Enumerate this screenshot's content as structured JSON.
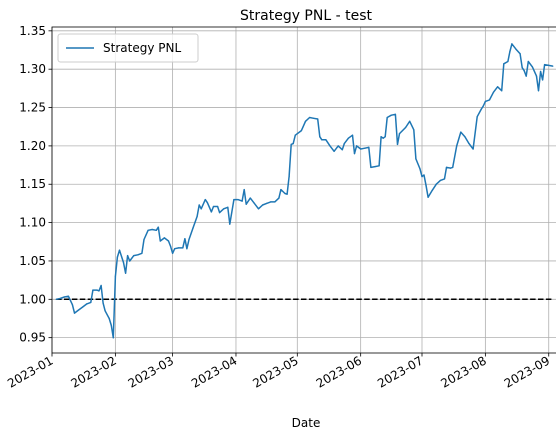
{
  "chart_data": {
    "type": "line",
    "title": "Strategy PNL - test",
    "xlabel": "Date",
    "ylabel": "",
    "x_type": "date",
    "xlim": [
      "2023-01-01",
      "2023-09-07"
    ],
    "ylim": [
      0.93,
      1.355
    ],
    "grid": true,
    "legend": {
      "entries": [
        "Strategy PNL"
      ],
      "placement": "top-left"
    },
    "x_tick_labels": [
      "2023-01",
      "2023-02",
      "2023-03",
      "2023-04",
      "2023-05",
      "2023-06",
      "2023-07",
      "2023-08",
      "2023-09"
    ],
    "x_tick_values": [
      "2023-01-01",
      "2023-02-01",
      "2023-03-01",
      "2023-04-01",
      "2023-05-01",
      "2023-06-01",
      "2023-07-01",
      "2023-08-01",
      "2023-09-01"
    ],
    "y_tick_labels": [
      "0.95",
      "1.00",
      "1.05",
      "1.10",
      "1.15",
      "1.20",
      "1.25",
      "1.30",
      "1.35"
    ],
    "y_tick_values": [
      0.95,
      1.0,
      1.05,
      1.1,
      1.15,
      1.2,
      1.25,
      1.3,
      1.35
    ],
    "colors": {
      "series": "#1f77b4",
      "baseline": "#000000",
      "grid": "#b0b0b0"
    },
    "series": [
      {
        "name": "Strategy PNL",
        "points": [
          [
            "2023-01-03",
            1.0
          ],
          [
            "2023-01-05",
            1.001
          ],
          [
            "2023-01-07",
            1.003
          ],
          [
            "2023-01-09",
            1.004
          ],
          [
            "2023-01-11",
            0.993
          ],
          [
            "2023-01-12",
            0.982
          ],
          [
            "2023-01-14",
            0.986
          ],
          [
            "2023-01-16",
            0.99
          ],
          [
            "2023-01-18",
            0.994
          ],
          [
            "2023-01-20",
            0.996
          ],
          [
            "2023-01-21",
            1.012
          ],
          [
            "2023-01-23",
            1.012
          ],
          [
            "2023-01-24",
            1.011
          ],
          [
            "2023-01-25",
            1.018
          ],
          [
            "2023-01-26",
            0.995
          ],
          [
            "2023-01-27",
            0.985
          ],
          [
            "2023-01-29",
            0.975
          ],
          [
            "2023-01-30",
            0.966
          ],
          [
            "2023-01-31",
            0.95
          ],
          [
            "2023-02-01",
            1.03
          ],
          [
            "2023-02-02",
            1.055
          ],
          [
            "2023-02-03",
            1.064
          ],
          [
            "2023-02-05",
            1.048
          ],
          [
            "2023-02-06",
            1.034
          ],
          [
            "2023-02-07",
            1.057
          ],
          [
            "2023-02-08",
            1.05
          ],
          [
            "2023-02-10",
            1.057
          ],
          [
            "2023-02-12",
            1.058
          ],
          [
            "2023-02-14",
            1.06
          ],
          [
            "2023-02-15",
            1.078
          ],
          [
            "2023-02-17",
            1.09
          ],
          [
            "2023-02-19",
            1.091
          ],
          [
            "2023-02-21",
            1.09
          ],
          [
            "2023-02-22",
            1.094
          ],
          [
            "2023-02-23",
            1.076
          ],
          [
            "2023-02-25",
            1.08
          ],
          [
            "2023-02-27",
            1.076
          ],
          [
            "2023-02-28",
            1.069
          ],
          [
            "2023-03-01",
            1.06
          ],
          [
            "2023-03-02",
            1.066
          ],
          [
            "2023-03-04",
            1.067
          ],
          [
            "2023-03-06",
            1.067
          ],
          [
            "2023-03-07",
            1.079
          ],
          [
            "2023-03-08",
            1.066
          ],
          [
            "2023-03-09",
            1.078
          ],
          [
            "2023-03-11",
            1.093
          ],
          [
            "2023-03-13",
            1.108
          ],
          [
            "2023-03-14",
            1.123
          ],
          [
            "2023-03-15",
            1.118
          ],
          [
            "2023-03-17",
            1.13
          ],
          [
            "2023-03-18",
            1.126
          ],
          [
            "2023-03-20",
            1.114
          ],
          [
            "2023-03-21",
            1.121
          ],
          [
            "2023-03-23",
            1.121
          ],
          [
            "2023-03-24",
            1.113
          ],
          [
            "2023-03-26",
            1.118
          ],
          [
            "2023-03-28",
            1.12
          ],
          [
            "2023-03-29",
            1.098
          ],
          [
            "2023-03-31",
            1.13
          ],
          [
            "2023-04-02",
            1.13
          ],
          [
            "2023-04-04",
            1.128
          ],
          [
            "2023-04-05",
            1.143
          ],
          [
            "2023-04-06",
            1.124
          ],
          [
            "2023-04-08",
            1.132
          ],
          [
            "2023-04-10",
            1.125
          ],
          [
            "2023-04-12",
            1.118
          ],
          [
            "2023-04-14",
            1.123
          ],
          [
            "2023-04-16",
            1.125
          ],
          [
            "2023-04-18",
            1.127
          ],
          [
            "2023-04-20",
            1.127
          ],
          [
            "2023-04-22",
            1.132
          ],
          [
            "2023-04-23",
            1.143
          ],
          [
            "2023-04-25",
            1.138
          ],
          [
            "2023-04-26",
            1.137
          ],
          [
            "2023-04-27",
            1.16
          ],
          [
            "2023-04-28",
            1.202
          ],
          [
            "2023-04-29",
            1.203
          ],
          [
            "2023-04-30",
            1.214
          ],
          [
            "2023-05-03",
            1.22
          ],
          [
            "2023-05-05",
            1.232
          ],
          [
            "2023-05-07",
            1.237
          ],
          [
            "2023-05-09",
            1.236
          ],
          [
            "2023-05-11",
            1.235
          ],
          [
            "2023-05-12",
            1.212
          ],
          [
            "2023-05-13",
            1.208
          ],
          [
            "2023-05-15",
            1.208
          ],
          [
            "2023-05-17",
            1.2
          ],
          [
            "2023-05-19",
            1.193
          ],
          [
            "2023-05-21",
            1.2
          ],
          [
            "2023-05-23",
            1.195
          ],
          [
            "2023-05-24",
            1.203
          ],
          [
            "2023-05-26",
            1.21
          ],
          [
            "2023-05-28",
            1.214
          ],
          [
            "2023-05-29",
            1.19
          ],
          [
            "2023-05-30",
            1.2
          ],
          [
            "2023-06-01",
            1.196
          ],
          [
            "2023-06-03",
            1.197
          ],
          [
            "2023-06-05",
            1.198
          ],
          [
            "2023-06-06",
            1.172
          ],
          [
            "2023-06-08",
            1.173
          ],
          [
            "2023-06-10",
            1.174
          ],
          [
            "2023-06-11",
            1.212
          ],
          [
            "2023-06-12",
            1.21
          ],
          [
            "2023-06-13",
            1.212
          ],
          [
            "2023-06-14",
            1.237
          ],
          [
            "2023-06-16",
            1.24
          ],
          [
            "2023-06-18",
            1.241
          ],
          [
            "2023-06-19",
            1.202
          ],
          [
            "2023-06-20",
            1.216
          ],
          [
            "2023-06-23",
            1.224
          ],
          [
            "2023-06-25",
            1.232
          ],
          [
            "2023-06-27",
            1.221
          ],
          [
            "2023-06-28",
            1.183
          ],
          [
            "2023-06-30",
            1.17
          ],
          [
            "2023-07-01",
            1.16
          ],
          [
            "2023-07-02",
            1.162
          ],
          [
            "2023-07-03",
            1.148
          ],
          [
            "2023-07-04",
            1.133
          ],
          [
            "2023-07-06",
            1.142
          ],
          [
            "2023-07-08",
            1.15
          ],
          [
            "2023-07-10",
            1.155
          ],
          [
            "2023-07-12",
            1.157
          ],
          [
            "2023-07-13",
            1.172
          ],
          [
            "2023-07-15",
            1.171
          ],
          [
            "2023-07-16",
            1.172
          ],
          [
            "2023-07-18",
            1.2
          ],
          [
            "2023-07-20",
            1.218
          ],
          [
            "2023-07-22",
            1.212
          ],
          [
            "2023-07-24",
            1.203
          ],
          [
            "2023-07-26",
            1.196
          ],
          [
            "2023-07-28",
            1.238
          ],
          [
            "2023-07-30",
            1.248
          ],
          [
            "2023-07-31",
            1.252
          ],
          [
            "2023-08-01",
            1.258
          ],
          [
            "2023-08-03",
            1.26
          ],
          [
            "2023-08-05",
            1.27
          ],
          [
            "2023-08-07",
            1.277
          ],
          [
            "2023-08-09",
            1.272
          ],
          [
            "2023-08-10",
            1.307
          ],
          [
            "2023-08-12",
            1.31
          ],
          [
            "2023-08-13",
            1.323
          ],
          [
            "2023-08-14",
            1.333
          ],
          [
            "2023-08-16",
            1.326
          ],
          [
            "2023-08-18",
            1.32
          ],
          [
            "2023-08-19",
            1.302
          ],
          [
            "2023-08-20",
            1.298
          ],
          [
            "2023-08-21",
            1.291
          ],
          [
            "2023-08-22",
            1.31
          ],
          [
            "2023-08-24",
            1.303
          ],
          [
            "2023-08-26",
            1.291
          ],
          [
            "2023-08-27",
            1.272
          ],
          [
            "2023-08-28",
            1.297
          ],
          [
            "2023-08-29",
            1.286
          ],
          [
            "2023-08-30",
            1.306
          ],
          [
            "2023-09-01",
            1.305
          ],
          [
            "2023-09-03",
            1.304
          ]
        ]
      },
      {
        "name": "",
        "style": "dashed",
        "points": [
          [
            "2023-01-03",
            1.0
          ],
          [
            "2023-09-03",
            1.0
          ]
        ]
      }
    ]
  }
}
